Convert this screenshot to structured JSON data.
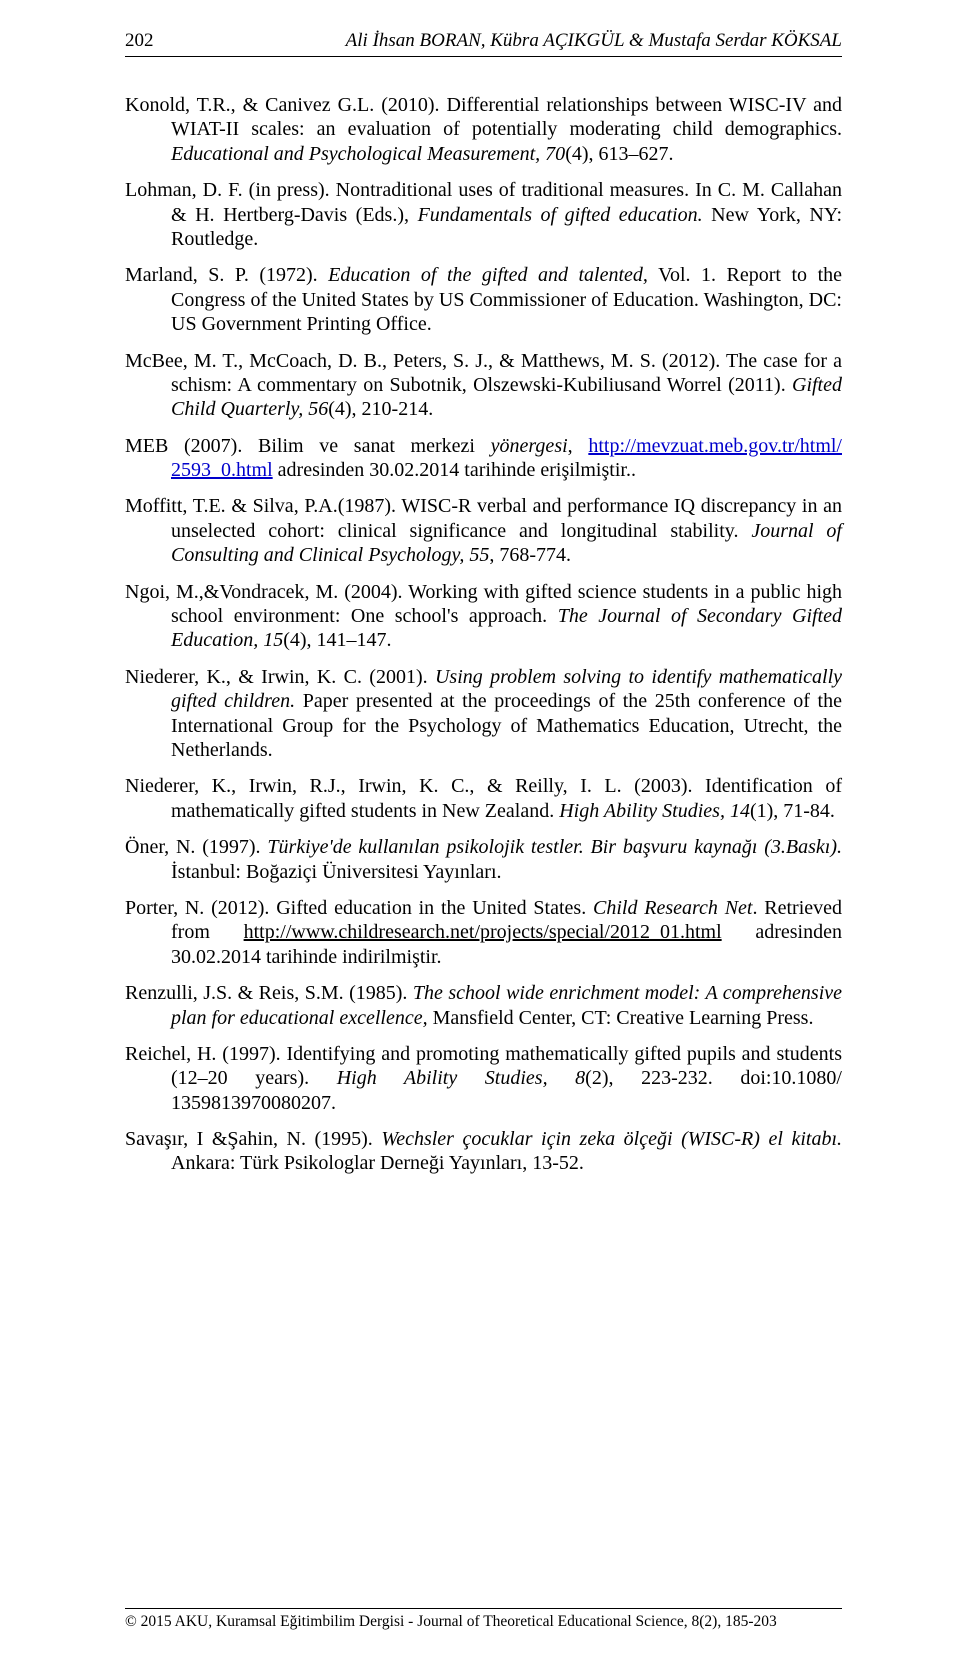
{
  "page_number": "202",
  "running_head": "Ali İhsan BORAN, Kübra AÇIKGÜL & Mustafa Serdar KÖKSAL",
  "refs": [
    {
      "plain1": "Konold, T.R., & Canivez G.L. (2010). Differential relationships between WISC-IV and WIAT-II scales: an evaluation of potentially moderating child demographics. ",
      "ital1": "Educational and Psychological Measurement, 70",
      "plain2": "(4), 613–627."
    },
    {
      "plain1": "Lohman, D. F. (in press). Nontraditional uses of traditional measures. In C. M. Callahan & H. Hertberg-Davis (Eds.), ",
      "ital1": "Fundamentals of gifted education.",
      "plain2": " New York, NY: Routledge."
    },
    {
      "plain1": "Marland, S. P. (1972). ",
      "ital1": "Education of the gifted and talented,",
      "plain2": " Vol. 1. Report to the Congress of the United States by US Commissioner of Education. Washington, DC: US Government  Printing Office."
    },
    {
      "plain1": "McBee, M. T., McCoach, D. B., Peters, S. J., & Matthews, M. S. (2012). The case for a schism: A commentary on Subotnik, Olszewski-Kubiliusand Worrel (2011). ",
      "ital1": "Gifted Child Quarterly, 56",
      "plain2": "(4), 210-214."
    },
    {
      "plain1": "MEB (2007). Bilim ve sanat merkezi ",
      "ital1": "yönergesi",
      "plain2": ", ",
      "link1_text": "http://mevzuat.meb.gov.tr/html/ 2593_0.html",
      "plain3": " adresinden 30.02.2014 tarihinde erişilmiştir.."
    },
    {
      "plain1": "Moffitt, T.E. & Silva, P.A.(1987). WISC-R verbal and performance IQ discrepancy in an unselected cohort: clinical significance and longitudinal stability. ",
      "ital1": "Journal of Consulting and Clinical Psychology, 55",
      "plain2": ", 768-774."
    },
    {
      "plain1": "Ngoi, M.,&Vondracek, M. (2004). Working with gifted science students in a public high school environment: One school's approach. ",
      "ital1": "The Journal of Secondary Gifted Education, 15",
      "plain2": "(4), 141–147."
    },
    {
      "plain1": "Niederer, K., & Irwin, K. C. (2001). ",
      "ital1": "Using problem solving to identify mathematically gifted children.",
      "plain2": " Paper presented at the proceedings of the 25th conference of the International Group for the Psychology of Mathematics Education, Utrecht, the Netherlands."
    },
    {
      "plain1": "Niederer, K., Irwin, R.J., Irwin, K. C., & Reilly, I. L. (2003). Identification of mathematically gifted students in New Zealand. ",
      "ital1": "High Ability Studies, 14",
      "plain2": "(1), 71-84."
    },
    {
      "plain1": "Öner, N. (1997). ",
      "ital1": "Türkiye'de kullanılan psikolojik testler. Bir başvuru kaynağı (3.Baskı).",
      "plain2": " İstanbul: Boğaziçi Üniversitesi Yayınları."
    },
    {
      "plain1": "Porter, N. (2012). Gifted education in the United States. ",
      "ital1": " Child Research Net",
      "plain2": ". Retrieved from ",
      "uline1_text": "http://www.childresearch.net/projects/special/2012_01.html",
      "plain3": " adresinden 30.02.2014 tarihinde indirilmiştir."
    },
    {
      "plain1": "Renzulli, J.S. & Reis, S.M. (1985). ",
      "ital1": "The school wide enrichment model: A comprehensive plan for educational excellence,",
      "plain2": " Mansfield Center, CT: Creative Learning Press."
    },
    {
      "plain1": "Reichel, H. (1997).  Identifying and promoting mathematically gifted pupils and students (12–20 years). ",
      "ital1": "High Ability Studies, 8",
      "plain2": "(2), 223-232. doi:10.1080/ 1359813970080207."
    },
    {
      "plain1": "Savaşır, I &Şahin, N. (1995). ",
      "ital1": "Wechsler çocuklar için zeka ölçeği (WISC-R) el kitabı.",
      "plain2": " Ankara: Türk Psikologlar Derneği Yayınları, 13-52."
    }
  ],
  "footer": "© 2015 AKU, Kuramsal Eğitimbilim Dergisi - Journal of Theoretical Educational Science, 8(2), 185-203"
}
